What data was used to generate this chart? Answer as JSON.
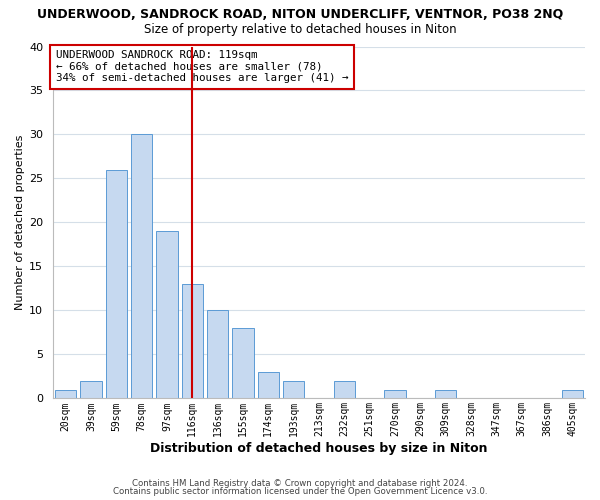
{
  "title": "UNDERWOOD, SANDROCK ROAD, NITON UNDERCLIFF, VENTNOR, PO38 2NQ",
  "subtitle": "Size of property relative to detached houses in Niton",
  "xlabel": "Distribution of detached houses by size in Niton",
  "ylabel": "Number of detached properties",
  "bar_labels": [
    "20sqm",
    "39sqm",
    "59sqm",
    "78sqm",
    "97sqm",
    "116sqm",
    "136sqm",
    "155sqm",
    "174sqm",
    "193sqm",
    "213sqm",
    "232sqm",
    "251sqm",
    "270sqm",
    "290sqm",
    "309sqm",
    "328sqm",
    "347sqm",
    "367sqm",
    "386sqm",
    "405sqm"
  ],
  "bar_values": [
    1,
    2,
    26,
    30,
    19,
    13,
    10,
    8,
    3,
    2,
    0,
    2,
    0,
    1,
    0,
    1,
    0,
    0,
    0,
    0,
    1
  ],
  "bar_color": "#c6d9f0",
  "bar_edge_color": "#5b9bd5",
  "ylim": [
    0,
    40
  ],
  "yticks": [
    0,
    5,
    10,
    15,
    20,
    25,
    30,
    35,
    40
  ],
  "vline_x": 5,
  "vline_color": "#cc0000",
  "annotation_title": "UNDERWOOD SANDROCK ROAD: 119sqm",
  "annotation_line1": "← 66% of detached houses are smaller (78)",
  "annotation_line2": "34% of semi-detached houses are larger (41) →",
  "footer1": "Contains HM Land Registry data © Crown copyright and database right 2024.",
  "footer2": "Contains public sector information licensed under the Open Government Licence v3.0.",
  "bg_color": "#ffffff",
  "grid_color": "#d5dfe8"
}
